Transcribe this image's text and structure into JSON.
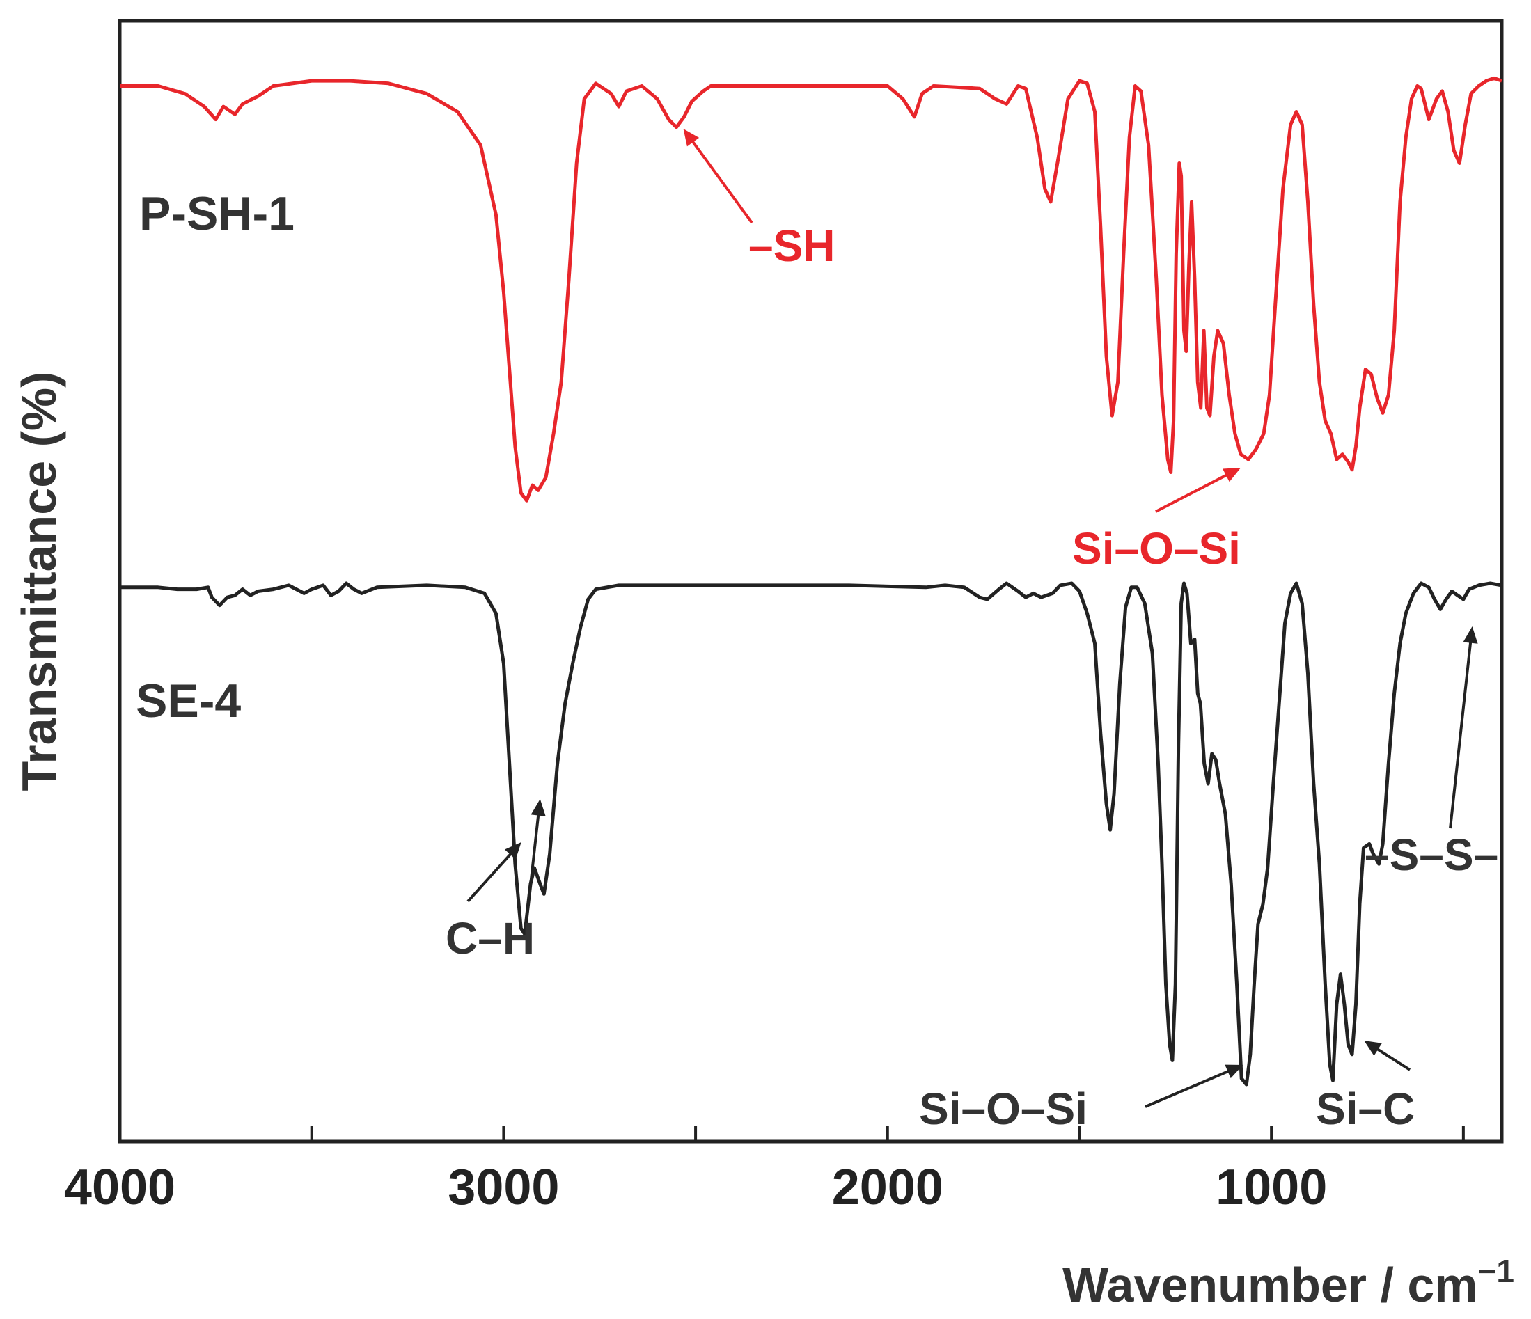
{
  "chart_data": {
    "type": "line",
    "title": "",
    "xlabel": "Wavenumber / cm",
    "xlabel_superscript": "−1",
    "ylabel": "Transmittance (%)",
    "xlim": [
      4000,
      400
    ],
    "x_reversed": true,
    "x_ticks": [
      4000,
      3500,
      3000,
      2500,
      2000,
      1500,
      1000,
      500
    ],
    "x_tick_labels": [
      "4000",
      "3000",
      "2000",
      "1000"
    ],
    "y_ticks_shown": false,
    "grid": false,
    "legend": "none",
    "series": [
      {
        "name": "P-SH-1",
        "color": "#e8262b",
        "points": [
          [
            4000,
            0.05
          ],
          [
            3900,
            0.05
          ],
          [
            3830,
            0.08
          ],
          [
            3780,
            0.13
          ],
          [
            3750,
            0.18
          ],
          [
            3730,
            0.13
          ],
          [
            3700,
            0.16
          ],
          [
            3680,
            0.12
          ],
          [
            3640,
            0.09
          ],
          [
            3600,
            0.05
          ],
          [
            3500,
            0.03
          ],
          [
            3400,
            0.03
          ],
          [
            3300,
            0.04
          ],
          [
            3200,
            0.08
          ],
          [
            3120,
            0.15
          ],
          [
            3060,
            0.28
          ],
          [
            3020,
            0.55
          ],
          [
            3000,
            0.85
          ],
          [
            2985,
            1.15
          ],
          [
            2970,
            1.45
          ],
          [
            2955,
            1.63
          ],
          [
            2940,
            1.66
          ],
          [
            2925,
            1.6
          ],
          [
            2910,
            1.62
          ],
          [
            2890,
            1.57
          ],
          [
            2870,
            1.4
          ],
          [
            2850,
            1.2
          ],
          [
            2830,
            0.8
          ],
          [
            2810,
            0.35
          ],
          [
            2790,
            0.1
          ],
          [
            2760,
            0.04
          ],
          [
            2720,
            0.08
          ],
          [
            2700,
            0.13
          ],
          [
            2680,
            0.07
          ],
          [
            2640,
            0.05
          ],
          [
            2600,
            0.1
          ],
          [
            2570,
            0.18
          ],
          [
            2550,
            0.21
          ],
          [
            2530,
            0.17
          ],
          [
            2510,
            0.11
          ],
          [
            2480,
            0.07
          ],
          [
            2460,
            0.05
          ],
          [
            2300,
            0.05
          ],
          [
            2100,
            0.05
          ],
          [
            2000,
            0.05
          ],
          [
            1960,
            0.1
          ],
          [
            1930,
            0.17
          ],
          [
            1910,
            0.08
          ],
          [
            1880,
            0.05
          ],
          [
            1760,
            0.06
          ],
          [
            1720,
            0.1
          ],
          [
            1690,
            0.12
          ],
          [
            1660,
            0.05
          ],
          [
            1640,
            0.06
          ],
          [
            1610,
            0.25
          ],
          [
            1590,
            0.45
          ],
          [
            1575,
            0.5
          ],
          [
            1555,
            0.33
          ],
          [
            1530,
            0.1
          ],
          [
            1500,
            0.03
          ],
          [
            1480,
            0.04
          ],
          [
            1460,
            0.15
          ],
          [
            1445,
            0.6
          ],
          [
            1430,
            1.1
          ],
          [
            1415,
            1.33
          ],
          [
            1400,
            1.2
          ],
          [
            1385,
            0.7
          ],
          [
            1370,
            0.25
          ],
          [
            1355,
            0.05
          ],
          [
            1340,
            0.07
          ],
          [
            1320,
            0.28
          ],
          [
            1300,
            0.8
          ],
          [
            1285,
            1.25
          ],
          [
            1270,
            1.5
          ],
          [
            1262,
            1.55
          ],
          [
            1255,
            1.35
          ],
          [
            1248,
            0.7
          ],
          [
            1240,
            0.35
          ],
          [
            1235,
            0.4
          ],
          [
            1228,
            1.0
          ],
          [
            1222,
            1.08
          ],
          [
            1215,
            0.75
          ],
          [
            1208,
            0.5
          ],
          [
            1200,
            0.8
          ],
          [
            1192,
            1.2
          ],
          [
            1184,
            1.3
          ],
          [
            1176,
            1.0
          ],
          [
            1168,
            1.3
          ],
          [
            1160,
            1.33
          ],
          [
            1150,
            1.1
          ],
          [
            1140,
            1.0
          ],
          [
            1125,
            1.05
          ],
          [
            1110,
            1.25
          ],
          [
            1095,
            1.4
          ],
          [
            1080,
            1.48
          ],
          [
            1060,
            1.5
          ],
          [
            1040,
            1.46
          ],
          [
            1020,
            1.4
          ],
          [
            1005,
            1.25
          ],
          [
            990,
            0.9
          ],
          [
            970,
            0.45
          ],
          [
            950,
            0.2
          ],
          [
            935,
            0.15
          ],
          [
            920,
            0.2
          ],
          [
            905,
            0.5
          ],
          [
            890,
            0.9
          ],
          [
            875,
            1.2
          ],
          [
            860,
            1.35
          ],
          [
            845,
            1.4
          ],
          [
            830,
            1.5
          ],
          [
            815,
            1.48
          ],
          [
            800,
            1.51
          ],
          [
            790,
            1.54
          ],
          [
            780,
            1.45
          ],
          [
            770,
            1.3
          ],
          [
            755,
            1.15
          ],
          [
            740,
            1.17
          ],
          [
            725,
            1.26
          ],
          [
            710,
            1.32
          ],
          [
            695,
            1.25
          ],
          [
            680,
            1.0
          ],
          [
            665,
            0.5
          ],
          [
            650,
            0.25
          ],
          [
            635,
            0.1
          ],
          [
            620,
            0.05
          ],
          [
            610,
            0.06
          ],
          [
            600,
            0.12
          ],
          [
            590,
            0.18
          ],
          [
            580,
            0.14
          ],
          [
            570,
            0.1
          ],
          [
            555,
            0.07
          ],
          [
            540,
            0.15
          ],
          [
            525,
            0.3
          ],
          [
            510,
            0.35
          ],
          [
            495,
            0.2
          ],
          [
            480,
            0.08
          ],
          [
            460,
            0.05
          ],
          [
            440,
            0.03
          ],
          [
            420,
            0.02
          ],
          [
            400,
            0.03
          ]
        ]
      },
      {
        "name": "SE-4",
        "color": "#222222",
        "points": [
          [
            4000,
            0.02
          ],
          [
            3900,
            0.02
          ],
          [
            3850,
            0.03
          ],
          [
            3800,
            0.03
          ],
          [
            3770,
            0.02
          ],
          [
            3760,
            0.07
          ],
          [
            3740,
            0.11
          ],
          [
            3720,
            0.07
          ],
          [
            3700,
            0.06
          ],
          [
            3680,
            0.03
          ],
          [
            3660,
            0.06
          ],
          [
            3640,
            0.04
          ],
          [
            3600,
            0.03
          ],
          [
            3560,
            0.01
          ],
          [
            3520,
            0.05
          ],
          [
            3500,
            0.03
          ],
          [
            3470,
            0.01
          ],
          [
            3450,
            0.06
          ],
          [
            3430,
            0.04
          ],
          [
            3410,
            0.0
          ],
          [
            3390,
            0.03
          ],
          [
            3370,
            0.05
          ],
          [
            3330,
            0.02
          ],
          [
            3200,
            0.01
          ],
          [
            3100,
            0.02
          ],
          [
            3050,
            0.05
          ],
          [
            3020,
            0.15
          ],
          [
            3000,
            0.4
          ],
          [
            2985,
            0.9
          ],
          [
            2970,
            1.4
          ],
          [
            2955,
            1.72
          ],
          [
            2945,
            1.75
          ],
          [
            2930,
            1.5
          ],
          [
            2920,
            1.42
          ],
          [
            2905,
            1.5
          ],
          [
            2895,
            1.55
          ],
          [
            2880,
            1.35
          ],
          [
            2860,
            0.9
          ],
          [
            2840,
            0.6
          ],
          [
            2820,
            0.4
          ],
          [
            2800,
            0.22
          ],
          [
            2780,
            0.08
          ],
          [
            2760,
            0.03
          ],
          [
            2700,
            0.01
          ],
          [
            2500,
            0.01
          ],
          [
            2300,
            0.01
          ],
          [
            2100,
            0.01
          ],
          [
            1900,
            0.02
          ],
          [
            1850,
            0.01
          ],
          [
            1800,
            0.02
          ],
          [
            1760,
            0.07
          ],
          [
            1740,
            0.08
          ],
          [
            1710,
            0.03
          ],
          [
            1690,
            0.0
          ],
          [
            1660,
            0.04
          ],
          [
            1640,
            0.07
          ],
          [
            1620,
            0.05
          ],
          [
            1600,
            0.07
          ],
          [
            1570,
            0.05
          ],
          [
            1550,
            0.01
          ],
          [
            1520,
            0.0
          ],
          [
            1500,
            0.04
          ],
          [
            1480,
            0.15
          ],
          [
            1460,
            0.3
          ],
          [
            1445,
            0.75
          ],
          [
            1430,
            1.1
          ],
          [
            1420,
            1.23
          ],
          [
            1410,
            1.05
          ],
          [
            1395,
            0.5
          ],
          [
            1380,
            0.12
          ],
          [
            1365,
            0.02
          ],
          [
            1350,
            0.02
          ],
          [
            1330,
            0.1
          ],
          [
            1310,
            0.35
          ],
          [
            1295,
            0.9
          ],
          [
            1285,
            1.4
          ],
          [
            1275,
            2.0
          ],
          [
            1265,
            2.3
          ],
          [
            1258,
            2.38
          ],
          [
            1250,
            2.0
          ],
          [
            1242,
            0.8
          ],
          [
            1235,
            0.1
          ],
          [
            1228,
            0.0
          ],
          [
            1220,
            0.05
          ],
          [
            1210,
            0.3
          ],
          [
            1200,
            0.28
          ],
          [
            1192,
            0.55
          ],
          [
            1185,
            0.6
          ],
          [
            1175,
            0.9
          ],
          [
            1165,
            1.0
          ],
          [
            1155,
            0.85
          ],
          [
            1145,
            0.88
          ],
          [
            1135,
            1.0
          ],
          [
            1120,
            1.15
          ],
          [
            1105,
            1.5
          ],
          [
            1090,
            2.0
          ],
          [
            1078,
            2.47
          ],
          [
            1065,
            2.5
          ],
          [
            1055,
            2.35
          ],
          [
            1045,
            2.0
          ],
          [
            1035,
            1.7
          ],
          [
            1022,
            1.6
          ],
          [
            1010,
            1.42
          ],
          [
            995,
            1.0
          ],
          [
            980,
            0.6
          ],
          [
            965,
            0.2
          ],
          [
            950,
            0.05
          ],
          [
            935,
            0.0
          ],
          [
            920,
            0.1
          ],
          [
            905,
            0.45
          ],
          [
            890,
            1.0
          ],
          [
            875,
            1.4
          ],
          [
            860,
            2.0
          ],
          [
            848,
            2.4
          ],
          [
            840,
            2.48
          ],
          [
            830,
            2.1
          ],
          [
            820,
            1.95
          ],
          [
            810,
            2.1
          ],
          [
            800,
            2.3
          ],
          [
            790,
            2.35
          ],
          [
            780,
            2.1
          ],
          [
            770,
            1.6
          ],
          [
            760,
            1.32
          ],
          [
            745,
            1.3
          ],
          [
            735,
            1.35
          ],
          [
            720,
            1.4
          ],
          [
            710,
            1.3
          ],
          [
            695,
            0.9
          ],
          [
            680,
            0.55
          ],
          [
            665,
            0.3
          ],
          [
            650,
            0.15
          ],
          [
            630,
            0.05
          ],
          [
            610,
            0.0
          ],
          [
            590,
            0.02
          ],
          [
            575,
            0.08
          ],
          [
            560,
            0.13
          ],
          [
            545,
            0.08
          ],
          [
            530,
            0.04
          ],
          [
            515,
            0.06
          ],
          [
            500,
            0.08
          ],
          [
            485,
            0.03
          ],
          [
            460,
            0.01
          ],
          [
            430,
            0.0
          ],
          [
            400,
            0.01
          ]
        ]
      }
    ],
    "annotations": [
      {
        "text": "–SH",
        "series": "P-SH-1",
        "color": "#e8262b",
        "points_to": 2550
      },
      {
        "text": "Si–O–Si",
        "series": "P-SH-1",
        "color": "#e8262b",
        "points_to": 1080
      },
      {
        "text": "C–H",
        "series": "SE-4",
        "color": "#222222",
        "points_to": [
          2945,
          2905
        ]
      },
      {
        "text": "Si–O–Si",
        "series": "SE-4",
        "color": "#222222",
        "points_to": 1065
      },
      {
        "text": "Si–C",
        "series": "SE-4",
        "color": "#222222",
        "points_to": 795
      },
      {
        "text": "–S–S–",
        "series": "SE-4",
        "color": "#222222",
        "points_to": 495
      }
    ]
  }
}
